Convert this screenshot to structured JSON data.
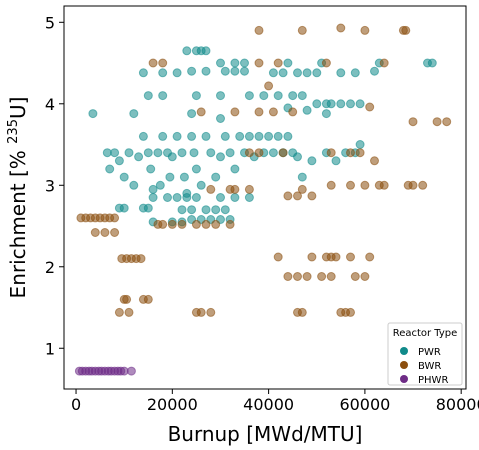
{
  "chart_data": {
    "type": "scatter",
    "xlabel": "Burnup [MWd/MTU]",
    "ylabel_prefix": "Enrichment [% ",
    "ylabel_sup": "235",
    "ylabel_suffix": "U]",
    "xlim": [
      -2500,
      81000
    ],
    "ylim": [
      0.5,
      5.2
    ],
    "xticks": [
      0,
      20000,
      40000,
      60000,
      80000
    ],
    "yticks": [
      1,
      2,
      3,
      4,
      5
    ],
    "grid": false,
    "legend": {
      "title": "Reactor Type",
      "placement": "lower-right"
    },
    "series": [
      {
        "name": "PWR",
        "color": "#108a8a",
        "points": [
          [
            3500,
            3.88
          ],
          [
            6500,
            3.4
          ],
          [
            7000,
            3.2
          ],
          [
            8000,
            3.4
          ],
          [
            9000,
            3.3
          ],
          [
            10000,
            3.1
          ],
          [
            11000,
            3.4
          ],
          [
            12000,
            3.0
          ],
          [
            13000,
            3.35
          ],
          [
            14000,
            3.6
          ],
          [
            15000,
            3.4
          ],
          [
            15500,
            3.2
          ],
          [
            16000,
            2.95
          ],
          [
            17000,
            3.4
          ],
          [
            17500,
            3.0
          ],
          [
            18000,
            3.6
          ],
          [
            19000,
            3.4
          ],
          [
            19500,
            3.1
          ],
          [
            20000,
            3.35
          ],
          [
            21000,
            3.6
          ],
          [
            22000,
            3.4
          ],
          [
            22500,
            3.1
          ],
          [
            23000,
            2.9
          ],
          [
            24000,
            3.6
          ],
          [
            24500,
            3.4
          ],
          [
            25000,
            3.2
          ],
          [
            26000,
            3.0
          ],
          [
            27000,
            3.6
          ],
          [
            28000,
            3.4
          ],
          [
            29000,
            3.1
          ],
          [
            30000,
            3.35
          ],
          [
            31000,
            3.6
          ],
          [
            32000,
            3.4
          ],
          [
            33000,
            3.2
          ],
          [
            34000,
            3.6
          ],
          [
            35000,
            3.4
          ],
          [
            36000,
            3.6
          ],
          [
            37000,
            3.35
          ],
          [
            38000,
            3.6
          ],
          [
            39000,
            3.4
          ],
          [
            40000,
            3.6
          ],
          [
            41000,
            3.4
          ],
          [
            42000,
            3.6
          ],
          [
            43000,
            3.4
          ],
          [
            44000,
            3.6
          ],
          [
            45000,
            3.4
          ],
          [
            46000,
            3.35
          ],
          [
            47000,
            3.1
          ],
          [
            49000,
            3.3
          ],
          [
            52000,
            3.4
          ],
          [
            54000,
            3.3
          ],
          [
            56000,
            3.4
          ],
          [
            58000,
            3.4
          ],
          [
            59000,
            3.5
          ],
          [
            9000,
            2.72
          ],
          [
            10000,
            2.72
          ],
          [
            14000,
            2.72
          ],
          [
            15000,
            2.72
          ],
          [
            16000,
            2.55
          ],
          [
            20000,
            2.55
          ],
          [
            22000,
            2.55
          ],
          [
            24000,
            2.58
          ],
          [
            26000,
            2.58
          ],
          [
            28000,
            2.58
          ],
          [
            30000,
            2.58
          ],
          [
            32000,
            2.58
          ],
          [
            16000,
            2.85
          ],
          [
            19000,
            2.85
          ],
          [
            21000,
            2.85
          ],
          [
            23000,
            2.85
          ],
          [
            25000,
            2.85
          ],
          [
            30000,
            2.85
          ],
          [
            33000,
            2.85
          ],
          [
            36000,
            2.85
          ],
          [
            22000,
            2.7
          ],
          [
            24000,
            2.7
          ],
          [
            27000,
            2.7
          ],
          [
            29000,
            2.7
          ],
          [
            31000,
            2.7
          ],
          [
            23000,
            4.65
          ],
          [
            25000,
            4.65
          ],
          [
            26000,
            4.65
          ],
          [
            27000,
            4.65
          ],
          [
            14000,
            4.38
          ],
          [
            18000,
            4.38
          ],
          [
            21000,
            4.38
          ],
          [
            24000,
            4.4
          ],
          [
            27000,
            4.4
          ],
          [
            31000,
            4.4
          ],
          [
            33000,
            4.4
          ],
          [
            35000,
            4.4
          ],
          [
            41000,
            4.38
          ],
          [
            43000,
            4.38
          ],
          [
            46000,
            4.38
          ],
          [
            48000,
            4.38
          ],
          [
            50000,
            4.38
          ],
          [
            55000,
            4.38
          ],
          [
            58000,
            4.38
          ],
          [
            62000,
            4.4
          ],
          [
            30000,
            4.5
          ],
          [
            33000,
            4.5
          ],
          [
            35000,
            4.5
          ],
          [
            44000,
            4.5
          ],
          [
            51000,
            4.5
          ],
          [
            63000,
            4.5
          ],
          [
            73000,
            4.5
          ],
          [
            74000,
            4.5
          ],
          [
            15000,
            4.1
          ],
          [
            18000,
            4.1
          ],
          [
            25000,
            4.1
          ],
          [
            30000,
            4.1
          ],
          [
            36000,
            4.1
          ],
          [
            39000,
            4.1
          ],
          [
            42000,
            4.1
          ],
          [
            45000,
            4.1
          ],
          [
            47000,
            4.1
          ],
          [
            50000,
            4.0
          ],
          [
            52000,
            4.0
          ],
          [
            53000,
            4.0
          ],
          [
            55000,
            4.0
          ],
          [
            57000,
            4.0
          ],
          [
            59000,
            4.0
          ],
          [
            44000,
            3.95
          ],
          [
            48000,
            3.92
          ],
          [
            52000,
            3.88
          ],
          [
            12000,
            3.88
          ],
          [
            24000,
            3.88
          ],
          [
            30000,
            3.82
          ]
        ]
      },
      {
        "name": "BWR",
        "color": "#8b4e0e",
        "points": [
          [
            1000,
            2.6
          ],
          [
            2000,
            2.6
          ],
          [
            3000,
            2.6
          ],
          [
            4000,
            2.6
          ],
          [
            5000,
            2.6
          ],
          [
            6000,
            2.6
          ],
          [
            7000,
            2.6
          ],
          [
            8000,
            2.6
          ],
          [
            4000,
            2.42
          ],
          [
            6000,
            2.42
          ],
          [
            8000,
            2.42
          ],
          [
            9500,
            2.1
          ],
          [
            10500,
            2.1
          ],
          [
            11500,
            2.1
          ],
          [
            12500,
            2.1
          ],
          [
            13500,
            2.1
          ],
          [
            10000,
            1.6
          ],
          [
            10500,
            1.6
          ],
          [
            14000,
            1.6
          ],
          [
            15000,
            1.6
          ],
          [
            9000,
            1.44
          ],
          [
            11000,
            1.44
          ],
          [
            25000,
            1.44
          ],
          [
            26000,
            1.44
          ],
          [
            28000,
            1.44
          ],
          [
            46000,
            1.44
          ],
          [
            47000,
            1.44
          ],
          [
            55000,
            1.44
          ],
          [
            56000,
            1.44
          ],
          [
            57000,
            1.44
          ],
          [
            44000,
            1.88
          ],
          [
            46000,
            1.88
          ],
          [
            48000,
            1.88
          ],
          [
            51000,
            1.88
          ],
          [
            53000,
            1.88
          ],
          [
            58000,
            1.88
          ],
          [
            60000,
            1.88
          ],
          [
            42000,
            2.12
          ],
          [
            49000,
            2.12
          ],
          [
            52000,
            2.12
          ],
          [
            53000,
            2.12
          ],
          [
            54000,
            2.12
          ],
          [
            57000,
            2.12
          ],
          [
            61000,
            2.12
          ],
          [
            17000,
            2.52
          ],
          [
            18000,
            2.52
          ],
          [
            20000,
            2.52
          ],
          [
            22000,
            2.52
          ],
          [
            25000,
            2.52
          ],
          [
            27000,
            2.52
          ],
          [
            29000,
            2.52
          ],
          [
            32000,
            2.52
          ],
          [
            28000,
            2.95
          ],
          [
            32000,
            2.95
          ],
          [
            33000,
            2.95
          ],
          [
            36000,
            2.95
          ],
          [
            47000,
            2.95
          ],
          [
            53000,
            3.0
          ],
          [
            57000,
            3.0
          ],
          [
            60000,
            3.0
          ],
          [
            63000,
            3.0
          ],
          [
            64000,
            3.0
          ],
          [
            69000,
            3.0
          ],
          [
            70000,
            3.0
          ],
          [
            72000,
            3.0
          ],
          [
            26000,
            3.9
          ],
          [
            33000,
            3.9
          ],
          [
            38000,
            3.9
          ],
          [
            41000,
            3.9
          ],
          [
            45000,
            3.9
          ],
          [
            44000,
            2.87
          ],
          [
            46000,
            2.87
          ],
          [
            49000,
            2.87
          ],
          [
            38000,
            4.5
          ],
          [
            42000,
            4.5
          ],
          [
            52000,
            4.5
          ],
          [
            64000,
            4.5
          ],
          [
            16000,
            4.5
          ],
          [
            18000,
            4.5
          ],
          [
            36000,
            3.4
          ],
          [
            38000,
            3.4
          ],
          [
            43000,
            3.4
          ],
          [
            53000,
            3.4
          ],
          [
            57000,
            3.4
          ],
          [
            59000,
            3.4
          ],
          [
            62000,
            3.3
          ],
          [
            38000,
            4.9
          ],
          [
            47000,
            4.9
          ],
          [
            55000,
            4.93
          ],
          [
            60000,
            4.9
          ],
          [
            68000,
            4.9
          ],
          [
            68500,
            4.9
          ],
          [
            40000,
            4.22
          ],
          [
            61000,
            3.96
          ],
          [
            70000,
            3.78
          ],
          [
            75000,
            3.78
          ],
          [
            77000,
            3.78
          ]
        ]
      },
      {
        "name": "PHWR",
        "color": "#6e2c86",
        "points": [
          [
            700,
            0.72
          ],
          [
            1300,
            0.72
          ],
          [
            2000,
            0.72
          ],
          [
            2700,
            0.72
          ],
          [
            3300,
            0.72
          ],
          [
            4000,
            0.72
          ],
          [
            4700,
            0.72
          ],
          [
            5300,
            0.72
          ],
          [
            6000,
            0.72
          ],
          [
            6700,
            0.72
          ],
          [
            7300,
            0.72
          ],
          [
            8000,
            0.72
          ],
          [
            8700,
            0.72
          ],
          [
            9300,
            0.72
          ],
          [
            10000,
            0.72
          ],
          [
            11500,
            0.72
          ]
        ]
      }
    ]
  }
}
